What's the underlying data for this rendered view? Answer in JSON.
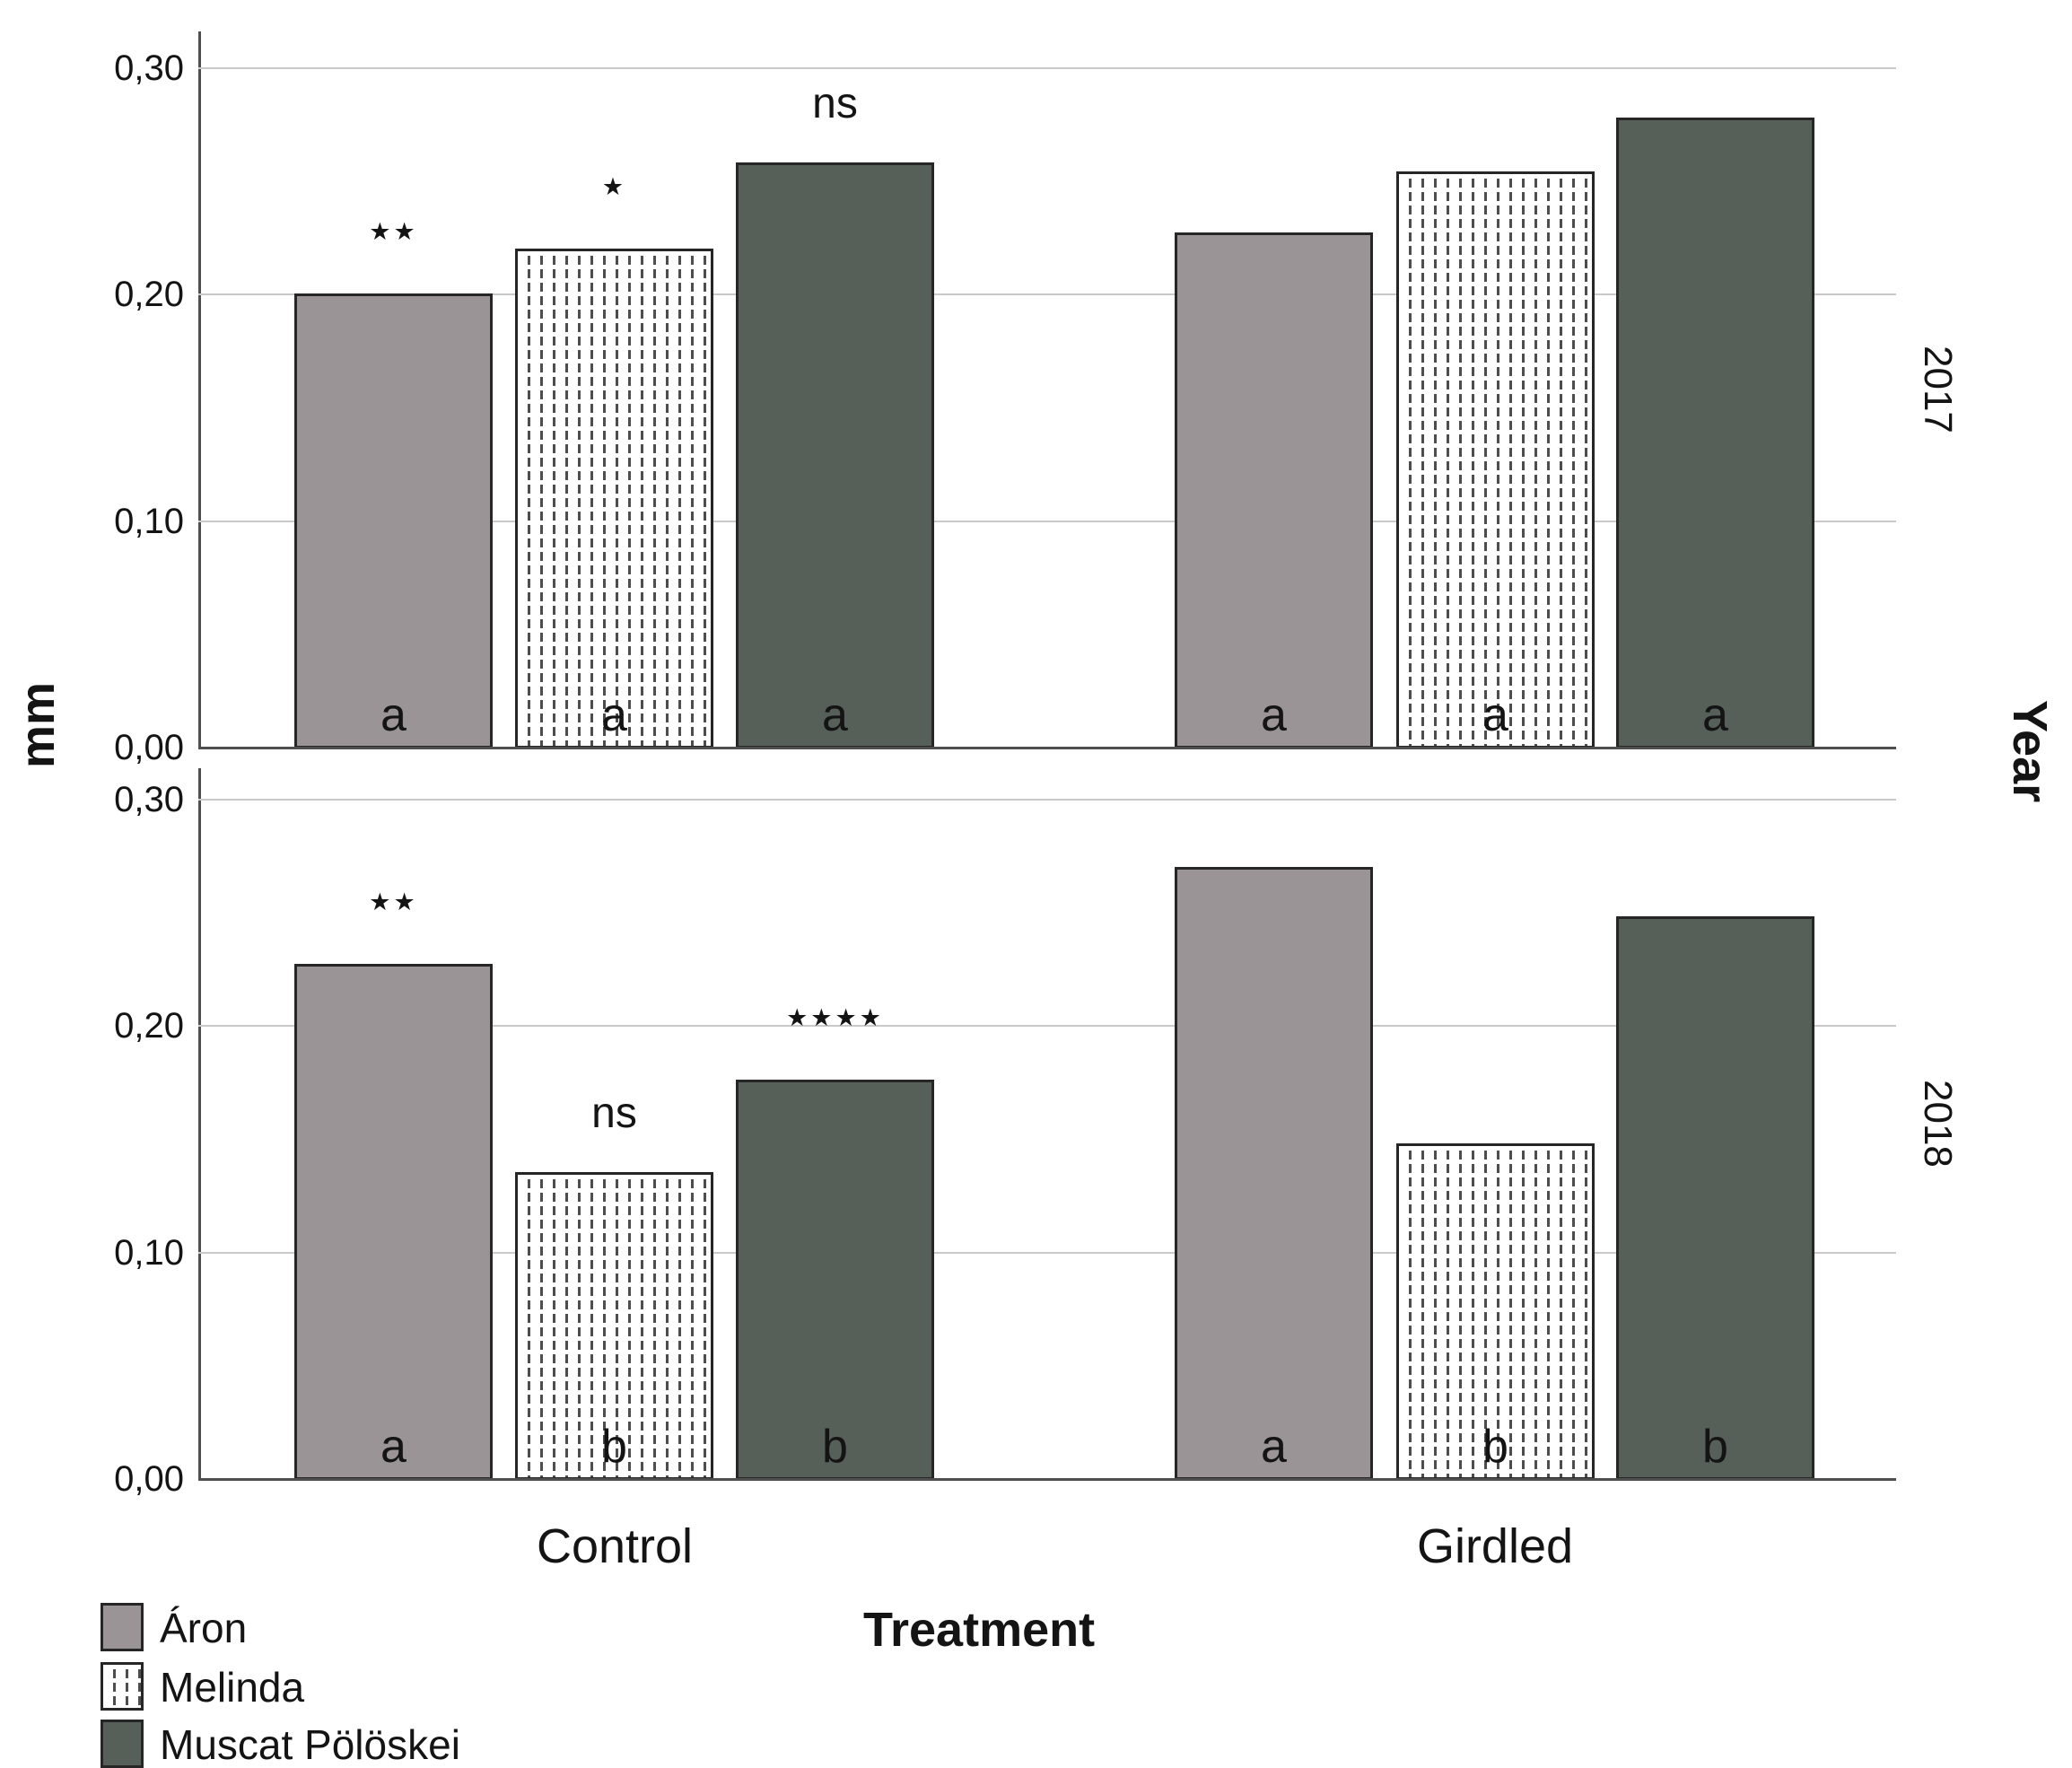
{
  "chart_data": {
    "type": "bar",
    "title": "",
    "ylabel": "mm",
    "xlabel": "Treatment",
    "panel_axis_label": "Year",
    "decimal_style": "comma",
    "grid": true,
    "legend_position": "bottom-left",
    "y_ticks": [
      {
        "label": "0,30",
        "value": 0.3
      },
      {
        "label": "0,20",
        "value": 0.2
      },
      {
        "label": "0,10",
        "value": 0.1
      },
      {
        "label": "0,00",
        "value": 0.0
      }
    ],
    "ylim": [
      0,
      0.315
    ],
    "categories": [
      "Control",
      "Girdled"
    ],
    "series": [
      "Áron",
      "Melinda",
      "Muscat Pölöskei"
    ],
    "panels": [
      {
        "label": "2017",
        "groups": [
          {
            "category": "Control",
            "bars": [
              {
                "series": "Áron",
                "value": 0.2,
                "sig": "**",
                "letter": "a"
              },
              {
                "series": "Melinda",
                "value": 0.22,
                "sig": "*",
                "letter": "a"
              },
              {
                "series": "Muscat Pölöskei",
                "value": 0.258,
                "sig": "ns",
                "letter": "a"
              }
            ]
          },
          {
            "category": "Girdled",
            "bars": [
              {
                "series": "Áron",
                "value": 0.227,
                "sig": "",
                "letter": "a"
              },
              {
                "series": "Melinda",
                "value": 0.254,
                "sig": "",
                "letter": "a"
              },
              {
                "series": "Muscat Pölöskei",
                "value": 0.278,
                "sig": "",
                "letter": "a"
              }
            ]
          }
        ]
      },
      {
        "label": "2018",
        "groups": [
          {
            "category": "Control",
            "bars": [
              {
                "series": "Áron",
                "value": 0.227,
                "sig": "**",
                "letter": "a"
              },
              {
                "series": "Melinda",
                "value": 0.135,
                "sig": "ns",
                "letter": "b"
              },
              {
                "series": "Muscat Pölöskei",
                "value": 0.176,
                "sig": "****",
                "letter": "b"
              }
            ]
          },
          {
            "category": "Girdled",
            "bars": [
              {
                "series": "Áron",
                "value": 0.27,
                "sig": "",
                "letter": "a"
              },
              {
                "series": "Melinda",
                "value": 0.148,
                "sig": "",
                "letter": "b"
              },
              {
                "series": "Muscat Pölöskei",
                "value": 0.248,
                "sig": "",
                "letter": "b"
              }
            ]
          }
        ]
      }
    ],
    "legend": [
      {
        "label": "Áron",
        "pattern": "solid",
        "fill": "#9a9496"
      },
      {
        "label": "Melinda",
        "pattern": "dotted",
        "fill": "#ffffff"
      },
      {
        "label": "Muscat Pölöskei",
        "pattern": "solid",
        "fill": "#565f58"
      }
    ],
    "colors": {
      "aron_fill": "#9a9496",
      "melinda_fill": "#ffffff",
      "melinda_pattern_line": "#4d4d4d",
      "muscat_fill": "#565f58",
      "bar_border": "#262626",
      "gridline": "#c9c9c9",
      "axis_line": "#4f4f4f",
      "text": "#141414"
    },
    "star_glyph": "★"
  }
}
